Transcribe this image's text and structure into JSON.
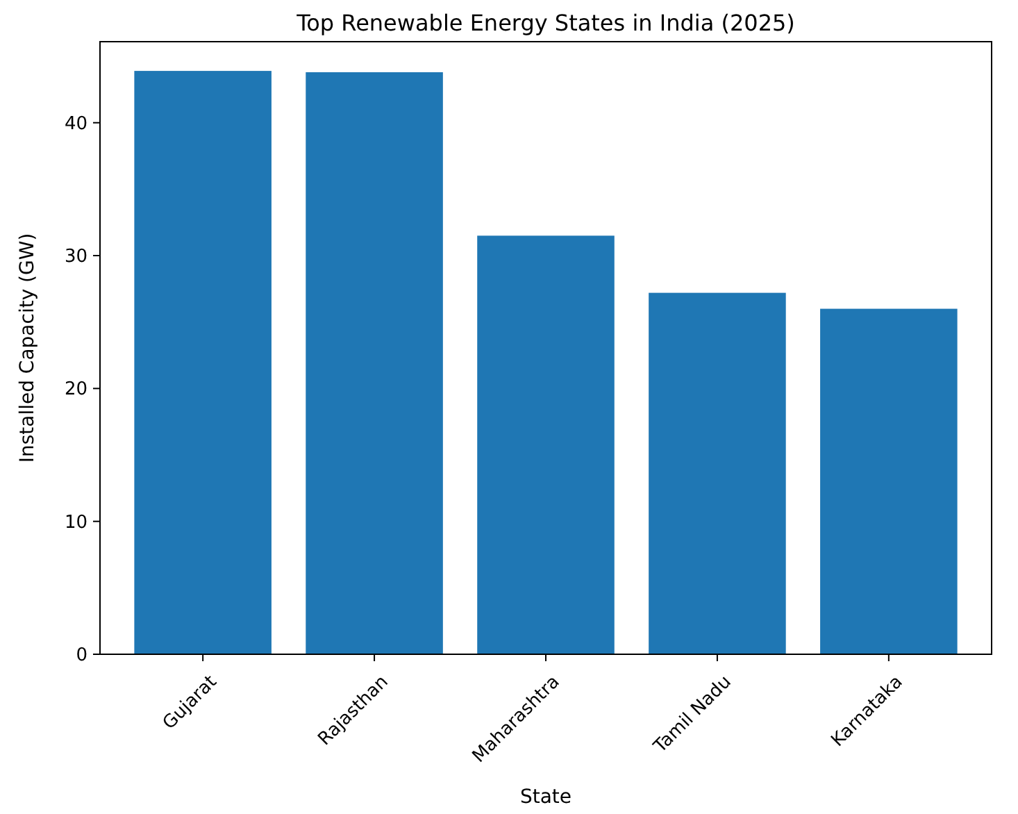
{
  "chart_data": {
    "type": "bar",
    "title": "Top Renewable Energy States in India (2025)",
    "xlabel": "State",
    "ylabel": "Installed Capacity (GW)",
    "categories": [
      "Gujarat",
      "Rajasthan",
      "Maharashtra",
      "Tamil Nadu",
      "Karnataka"
    ],
    "values": [
      43.9,
      43.8,
      31.5,
      27.2,
      26.0
    ],
    "color": "#1f77b4",
    "ylim": [
      0,
      46.1
    ],
    "yticks": [
      0,
      10,
      20,
      30,
      40
    ],
    "grid": false
  }
}
